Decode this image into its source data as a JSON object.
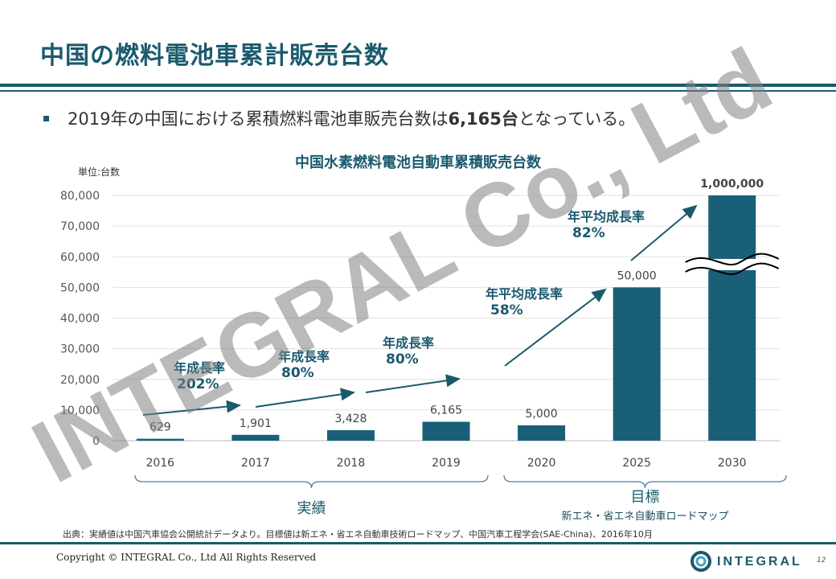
{
  "slide": {
    "title": "中国の燃料電池車累計販売台数",
    "bullet_pre": "2019年の中国における累積燃料電池車販売台数は",
    "bullet_bold": "6,165台",
    "bullet_post": "となっている。"
  },
  "chart_data": {
    "type": "bar",
    "title": "中国水素燃料電池自動車累積販売台数",
    "unit_label": "単位:台数",
    "categories": [
      "2016",
      "2017",
      "2018",
      "2019",
      "2020",
      "2025",
      "2030"
    ],
    "values": [
      629,
      1901,
      3428,
      6165,
      5000,
      50000,
      1000000
    ],
    "data_labels": [
      "629",
      "1,901",
      "3,428",
      "6,165",
      "5,000",
      "50,000",
      "1,000,000"
    ],
    "ylim": [
      0,
      80000
    ],
    "yticks": [
      "0",
      "10,000",
      "20,000",
      "30,000",
      "40,000",
      "50,000",
      "60,000",
      "70,000",
      "80,000"
    ],
    "axis_break_on": "2030",
    "bar_color": "#1a5f78",
    "grid": true,
    "annotations": [
      {
        "line1": "年成長率",
        "line2": "202%"
      },
      {
        "line1": "年成長率",
        "line2": "80%"
      },
      {
        "line1": "年成長率",
        "line2": "80%"
      },
      {
        "line1": "年平均成長率",
        "line2": "58%"
      },
      {
        "line1": "年平均成長率",
        "line2": "82%"
      }
    ],
    "groups": [
      {
        "label": "実績"
      },
      {
        "label": "目標",
        "sublabel": "新エネ・省エネ自動車ロードマップ"
      }
    ]
  },
  "source": "出典：実績値は中国汽車協会公開統計データより。目標値は新エネ・省エネ自動車技術ロードマップ、中国汽車工程学会(SAE-China)、2016年10月",
  "footer": {
    "copyright": "Copyright © INTEGRAL  Co., Ltd All Rights Reserved",
    "logo_text": "INTEGRAL",
    "page": "12"
  },
  "watermark": "INTEGRAL Co., Ltd",
  "colors": {
    "accent": "#1a5a6e",
    "bar": "#1a5f78"
  }
}
